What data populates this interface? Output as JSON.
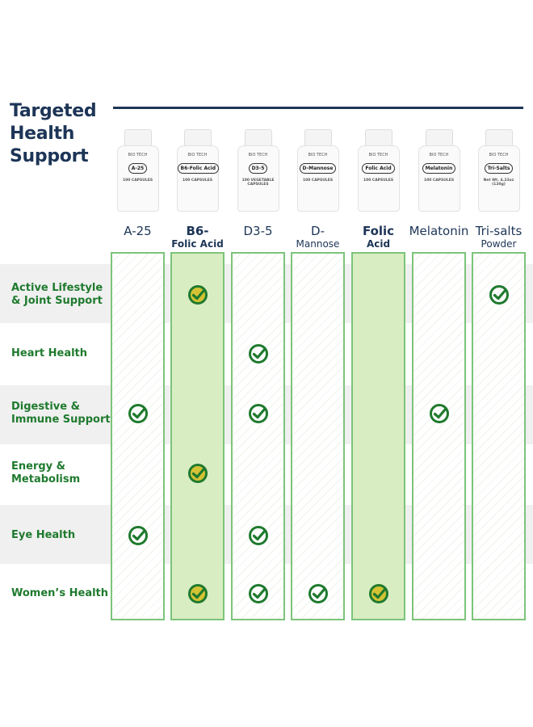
{
  "title": [
    "Targeted",
    "Health",
    "Support"
  ],
  "colors": {
    "navy": "#1d3557",
    "green": "#1f7a2e",
    "highlight": "#d9edc2",
    "check_fill_highlight": "#d4c234"
  },
  "products": [
    {
      "line1": "A-25",
      "line2": "",
      "bold": false,
      "highlighted": false,
      "bottle": {
        "logo": "BIO TECH",
        "label": "A-25",
        "sub": "100 CAPSULES"
      }
    },
    {
      "line1": "B6-",
      "line2": "Folic Acid",
      "bold": true,
      "highlighted": true,
      "bottle": {
        "logo": "BIO TECH",
        "label": "B6-Folic Acid",
        "sub": "100 CAPSULES"
      }
    },
    {
      "line1": "D3-5",
      "line2": "",
      "bold": false,
      "highlighted": false,
      "bottle": {
        "logo": "BIO TECH",
        "label": "D3-5",
        "sub": "100 VEGETABLE CAPSULES"
      }
    },
    {
      "line1": "D-",
      "line2": "Mannose",
      "bold": false,
      "highlighted": false,
      "bottle": {
        "logo": "BIO TECH",
        "label": "D-Mannose",
        "sub": "100 CAPSULES"
      }
    },
    {
      "line1": "Folic",
      "line2": "Acid",
      "bold": true,
      "highlighted": true,
      "bottle": {
        "logo": "BIO TECH",
        "label": "Folic Acid",
        "sub": "100 CAPSULES"
      }
    },
    {
      "line1": "Melatonin",
      "line2": "",
      "bold": false,
      "highlighted": false,
      "bottle": {
        "logo": "BIO TECH",
        "label": "Melatonin",
        "sub": "100 CAPSULES"
      }
    },
    {
      "line1": "Tri-salts",
      "line2": "Powder",
      "bold": false,
      "highlighted": false,
      "bottle": {
        "logo": "BIO TECH",
        "label": "Tri-Salts",
        "sub": "Net Wt. 4.23oz (120g)"
      }
    }
  ],
  "rows": [
    {
      "label": [
        "Active Lifestyle",
        "& Joint Support"
      ],
      "checks": [
        false,
        true,
        false,
        false,
        false,
        false,
        true
      ]
    },
    {
      "label": [
        "Heart Health"
      ],
      "checks": [
        false,
        false,
        true,
        false,
        false,
        false,
        false
      ]
    },
    {
      "label": [
        "Digestive &",
        "Immune Support"
      ],
      "checks": [
        true,
        false,
        true,
        false,
        false,
        true,
        false
      ]
    },
    {
      "label": [
        "Energy &",
        "Metabolism"
      ],
      "checks": [
        false,
        true,
        false,
        false,
        false,
        false,
        false
      ]
    },
    {
      "label": [
        "Eye Health"
      ],
      "checks": [
        true,
        false,
        true,
        false,
        false,
        false,
        false
      ]
    },
    {
      "label": [
        "Women’s Health"
      ],
      "checks": [
        false,
        true,
        true,
        true,
        true,
        false,
        false
      ]
    }
  ]
}
